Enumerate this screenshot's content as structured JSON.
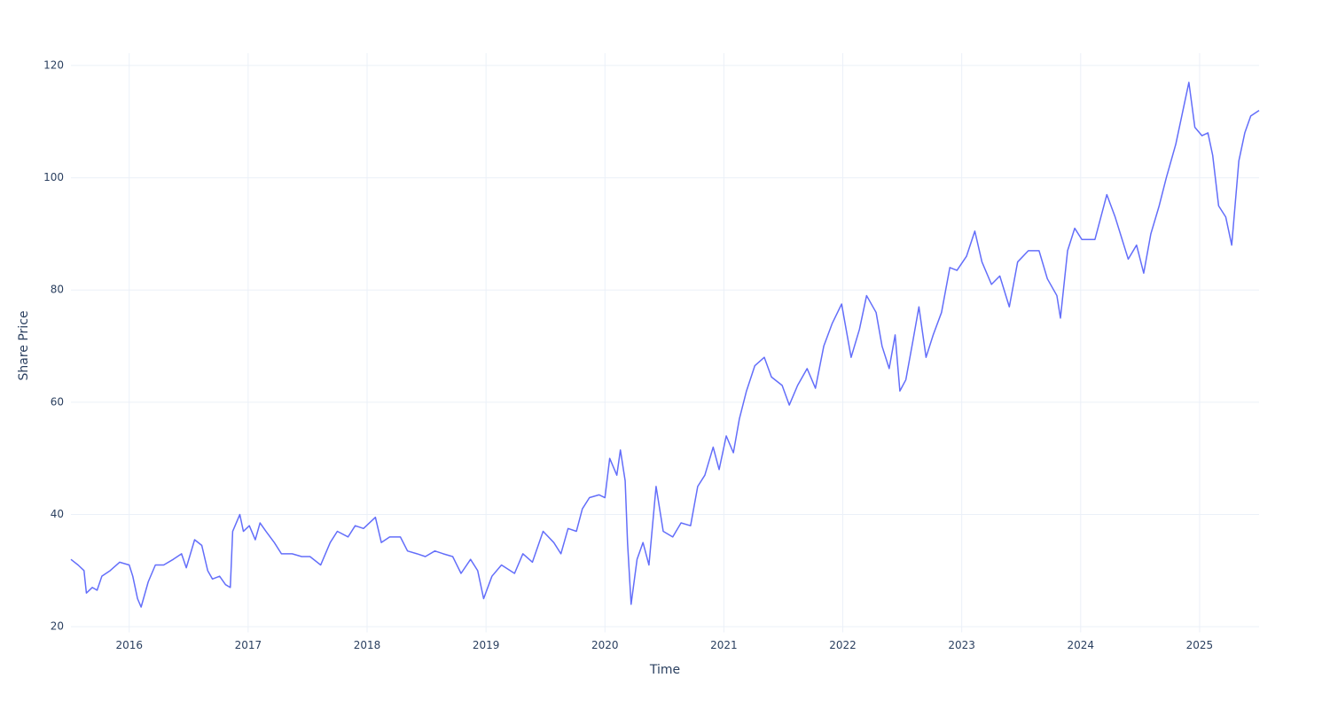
{
  "chart_data": {
    "type": "line",
    "x_label": "Time",
    "y_label": "Share Price",
    "xlim": [
      2015.51,
      2025.5
    ],
    "xticks": [
      2016,
      2017,
      2018,
      2019,
      2020,
      2021,
      2022,
      2023,
      2024,
      2025
    ],
    "ylim": [
      19,
      122.2
    ],
    "yticks": [
      20,
      40,
      60,
      80,
      100,
      120
    ],
    "grid": true,
    "series": [
      {
        "color": "#636efa",
        "x": [
          2015.51,
          2015.57,
          2015.62,
          2015.64,
          2015.69,
          2015.73,
          2015.77,
          2015.84,
          2015.92,
          2016.0,
          2016.03,
          2016.07,
          2016.1,
          2016.16,
          2016.22,
          2016.29,
          2016.37,
          2016.44,
          2016.48,
          2016.55,
          2016.61,
          2016.66,
          2016.7,
          2016.76,
          2016.81,
          2016.85,
          2016.87,
          2016.93,
          2016.96,
          2017.01,
          2017.06,
          2017.1,
          2017.15,
          2017.22,
          2017.28,
          2017.37,
          2017.45,
          2017.52,
          2017.61,
          2017.69,
          2017.75,
          2017.84,
          2017.9,
          2017.97,
          2018.07,
          2018.12,
          2018.19,
          2018.28,
          2018.34,
          2018.42,
          2018.49,
          2018.57,
          2018.64,
          2018.72,
          2018.79,
          2018.87,
          2018.93,
          2018.98,
          2019.05,
          2019.13,
          2019.24,
          2019.31,
          2019.39,
          2019.48,
          2019.57,
          2019.63,
          2019.69,
          2019.76,
          2019.81,
          2019.87,
          2019.95,
          2020.0,
          2020.04,
          2020.1,
          2020.13,
          2020.17,
          2020.19,
          2020.22,
          2020.27,
          2020.32,
          2020.37,
          2020.43,
          2020.49,
          2020.57,
          2020.64,
          2020.72,
          2020.78,
          2020.84,
          2020.91,
          2020.96,
          2021.02,
          2021.08,
          2021.13,
          2021.19,
          2021.26,
          2021.34,
          2021.4,
          2021.49,
          2021.55,
          2021.62,
          2021.7,
          2021.77,
          2021.84,
          2021.91,
          2021.99,
          2022.07,
          2022.14,
          2022.2,
          2022.28,
          2022.33,
          2022.39,
          2022.44,
          2022.48,
          2022.53,
          2022.59,
          2022.64,
          2022.7,
          2022.76,
          2022.83,
          2022.9,
          2022.96,
          2023.04,
          2023.11,
          2023.17,
          2023.25,
          2023.32,
          2023.4,
          2023.47,
          2023.56,
          2023.65,
          2023.72,
          2023.8,
          2023.83,
          2023.89,
          2023.95,
          2024.01,
          2024.12,
          2024.22,
          2024.29,
          2024.4,
          2024.47,
          2024.53,
          2024.59,
          2024.66,
          2024.72,
          2024.8,
          2024.86,
          2024.91,
          2024.96,
          2025.02,
          2025.07,
          2025.11,
          2025.16,
          2025.22,
          2025.27,
          2025.33,
          2025.38,
          2025.43,
          2025.5
        ],
        "values": [
          32,
          31,
          30,
          26,
          27,
          26.5,
          29,
          30,
          31.5,
          31,
          29,
          25,
          23.5,
          28,
          31,
          31,
          32,
          33,
          30.5,
          35.5,
          34.5,
          30,
          28.5,
          29,
          27.5,
          27,
          37,
          40,
          37,
          38,
          35.5,
          38.5,
          37,
          35,
          33,
          33,
          32.5,
          32.5,
          31,
          35,
          37,
          36,
          38,
          37.5,
          39.5,
          35,
          36,
          36,
          33.5,
          33,
          32.5,
          33.5,
          33,
          32.5,
          29.5,
          32,
          30,
          25,
          29,
          31,
          29.5,
          33,
          31.5,
          37,
          35,
          33,
          37.5,
          37,
          41,
          43,
          43.5,
          43,
          50,
          47,
          51.5,
          46,
          35,
          24,
          32,
          35,
          31,
          45,
          37,
          36,
          38.5,
          38,
          45,
          47,
          52,
          48,
          54,
          51,
          57,
          62,
          66.5,
          68,
          64.5,
          63,
          59.5,
          63,
          66,
          62.5,
          70,
          74,
          77.5,
          68,
          73,
          79,
          76,
          70,
          66,
          72,
          62,
          64,
          71,
          77,
          68,
          72,
          76,
          84,
          83.5,
          86,
          90.5,
          85,
          81,
          82.5,
          77,
          85,
          87,
          87,
          82,
          79,
          75,
          87,
          91,
          89,
          89,
          97,
          93,
          85.5,
          88,
          83,
          90,
          95,
          100,
          106,
          112,
          117,
          109,
          107.5,
          108,
          104,
          95,
          93,
          88,
          103,
          108,
          111,
          112
        ]
      }
    ]
  }
}
